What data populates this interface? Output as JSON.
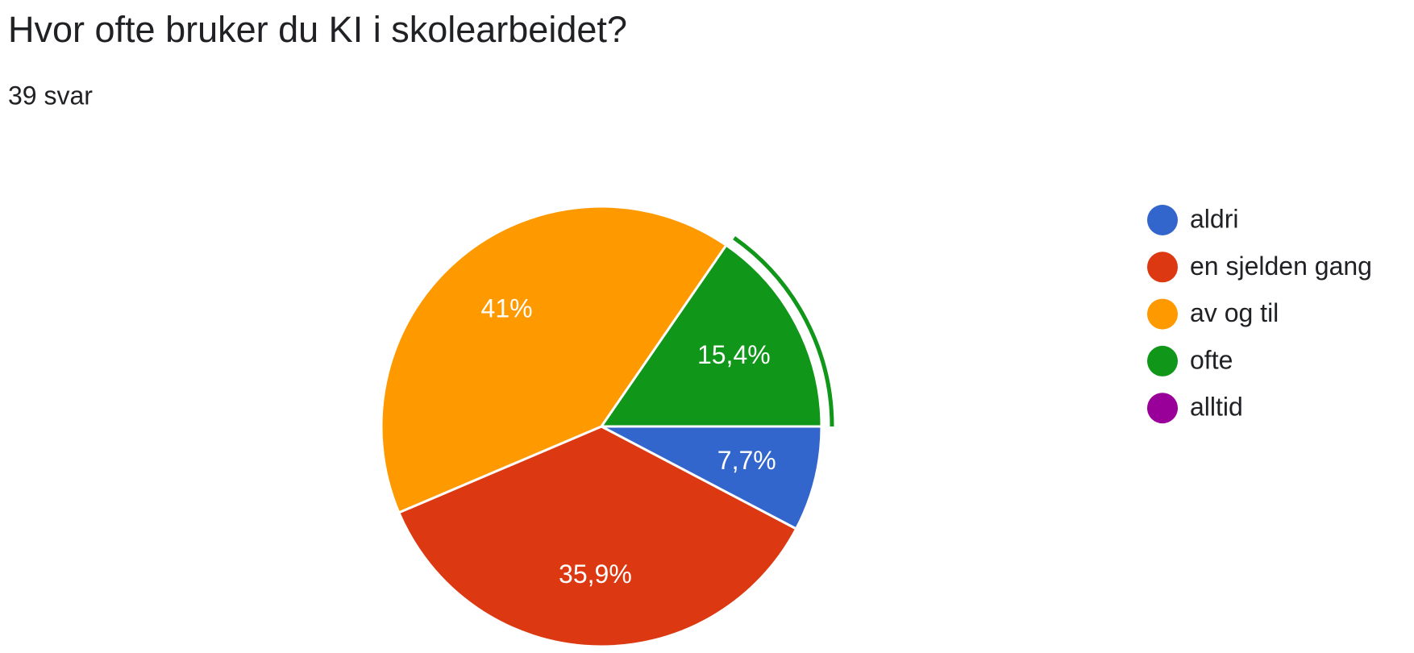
{
  "chart_data": {
    "type": "pie",
    "title": "Hvor ofte bruker du KI i skolearbeidet?",
    "subtitle": "39 svar",
    "categories": [
      "aldri",
      "en sjelden gang",
      "av og til",
      "ofte",
      "alltid"
    ],
    "values": [
      7.7,
      35.9,
      41,
      15.4,
      0
    ],
    "value_labels": [
      "7,7%",
      "35,9%",
      "41%",
      "15,4%",
      null
    ],
    "colors": [
      "#3366cc",
      "#dc3912",
      "#ff9900",
      "#109618",
      "#990099"
    ],
    "legend": "right"
  }
}
